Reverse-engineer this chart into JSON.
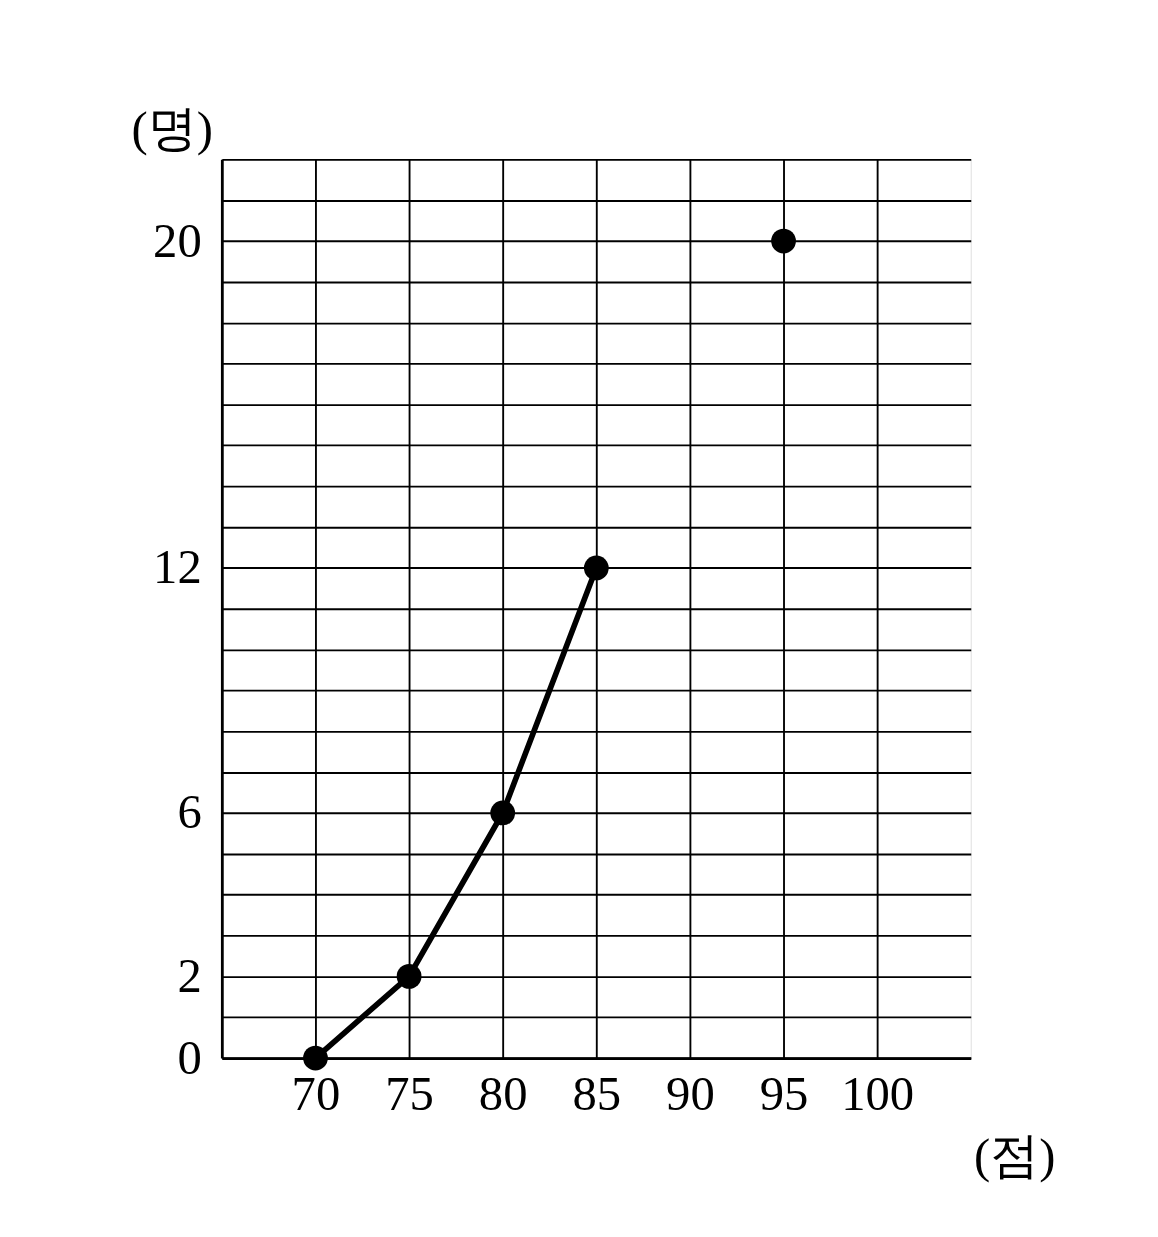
{
  "chart_data": {
    "type": "line",
    "xlabel": "(점)",
    "ylabel": "(명)",
    "x": [
      70,
      75,
      80,
      85,
      90,
      95
    ],
    "series": [
      {
        "color": "#000000",
        "values": [
          0,
          2,
          6,
          12,
          null,
          20
        ]
      }
    ],
    "xlim": [
      65,
      105
    ],
    "xticks": [
      70,
      75,
      80,
      85,
      90,
      95,
      100
    ],
    "ylim": [
      0,
      22
    ],
    "yticks": [
      0,
      {
        "value": 1,
        "label": null
      },
      2,
      {
        "value": 3,
        "label": null
      },
      {
        "value": 4,
        "label": null
      },
      {
        "value": 5,
        "label": null
      },
      6,
      {
        "value": 7,
        "label": null
      },
      {
        "value": 8,
        "label": null
      },
      {
        "value": 9,
        "label": null
      },
      {
        "value": 10,
        "label": null
      },
      {
        "value": 11,
        "label": null
      },
      12,
      {
        "value": 13,
        "label": null
      },
      {
        "value": 14,
        "label": null
      },
      {
        "value": 15,
        "label": null
      },
      {
        "value": 16,
        "label": null
      },
      {
        "value": 17,
        "label": null
      },
      {
        "value": 18,
        "label": null
      },
      {
        "value": 19,
        "label": null
      },
      20,
      {
        "value": 21,
        "label": null
      },
      {
        "value": 22,
        "label": null
      }
    ],
    "grid": true,
    "marker": "circle",
    "line_style": "solid",
    "legend": false
  }
}
